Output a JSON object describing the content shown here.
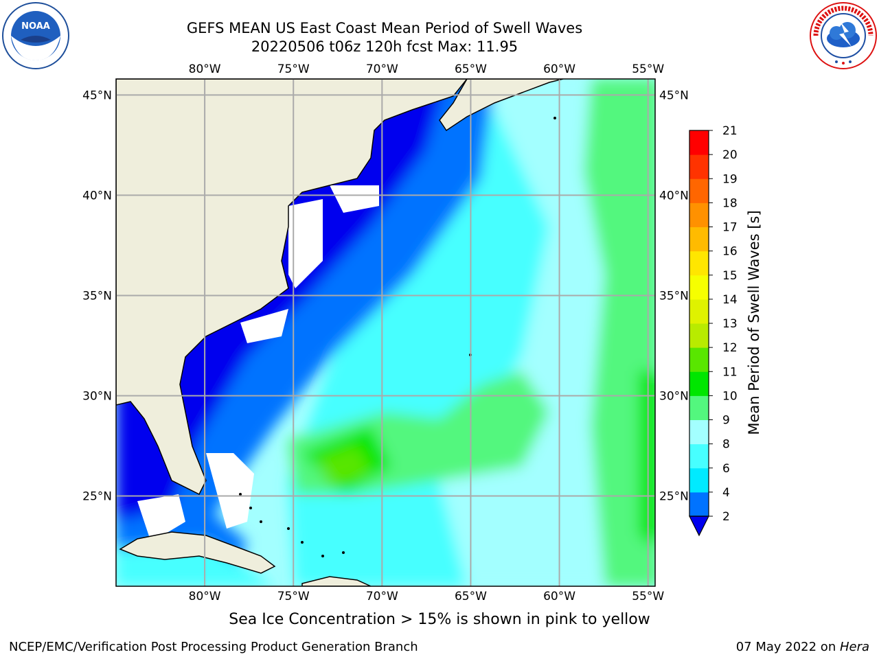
{
  "title": {
    "line1": "GEFS MEAN US East Coast Mean Period of Swell Waves",
    "line2": "20220506 t06z 120h fcst   Max: 11.95"
  },
  "map": {
    "lon_ticks": [
      "80°W",
      "75°W",
      "70°W",
      "65°W",
      "60°W",
      "55°W"
    ],
    "lat_ticks": [
      "45°N",
      "40°N",
      "35°N",
      "30°N",
      "25°N"
    ],
    "lon_range": [
      -85,
      -54.6
    ],
    "lat_range": [
      20.5,
      45.8
    ],
    "grid": true,
    "land_color": "#efeedc",
    "coastline_color": "#000000"
  },
  "colorbar": {
    "label": "Mean Period of Swell Waves [s]",
    "ticks": [
      "2",
      "4",
      "6",
      "8",
      "9",
      "10",
      "11",
      "12",
      "13",
      "14",
      "15",
      "16",
      "17",
      "18",
      "19",
      "20",
      "21"
    ],
    "colors": [
      "#0000ee",
      "#0073ff",
      "#00eaff",
      "#47ffff",
      "#a3ffff",
      "#53f77e",
      "#00e600",
      "#59e600",
      "#b8eb00",
      "#dff200",
      "#f6ff00",
      "#ffe600",
      "#ffbb00",
      "#ff9100",
      "#ff6600",
      "#ff3300",
      "#ff0000"
    ],
    "extend": "min"
  },
  "sea_ice_note": "Sea Ice Concentration > 15% is shown in pink to yellow",
  "footer": {
    "left": "NCEP/EMC/Verification Post Processing Product Generation Branch",
    "right_prefix": "07 May 2022 on ",
    "right_machine": "Hera"
  },
  "logos": {
    "noaa": "NOAA",
    "nws": "NATIONAL WEATHER SERVICE"
  }
}
